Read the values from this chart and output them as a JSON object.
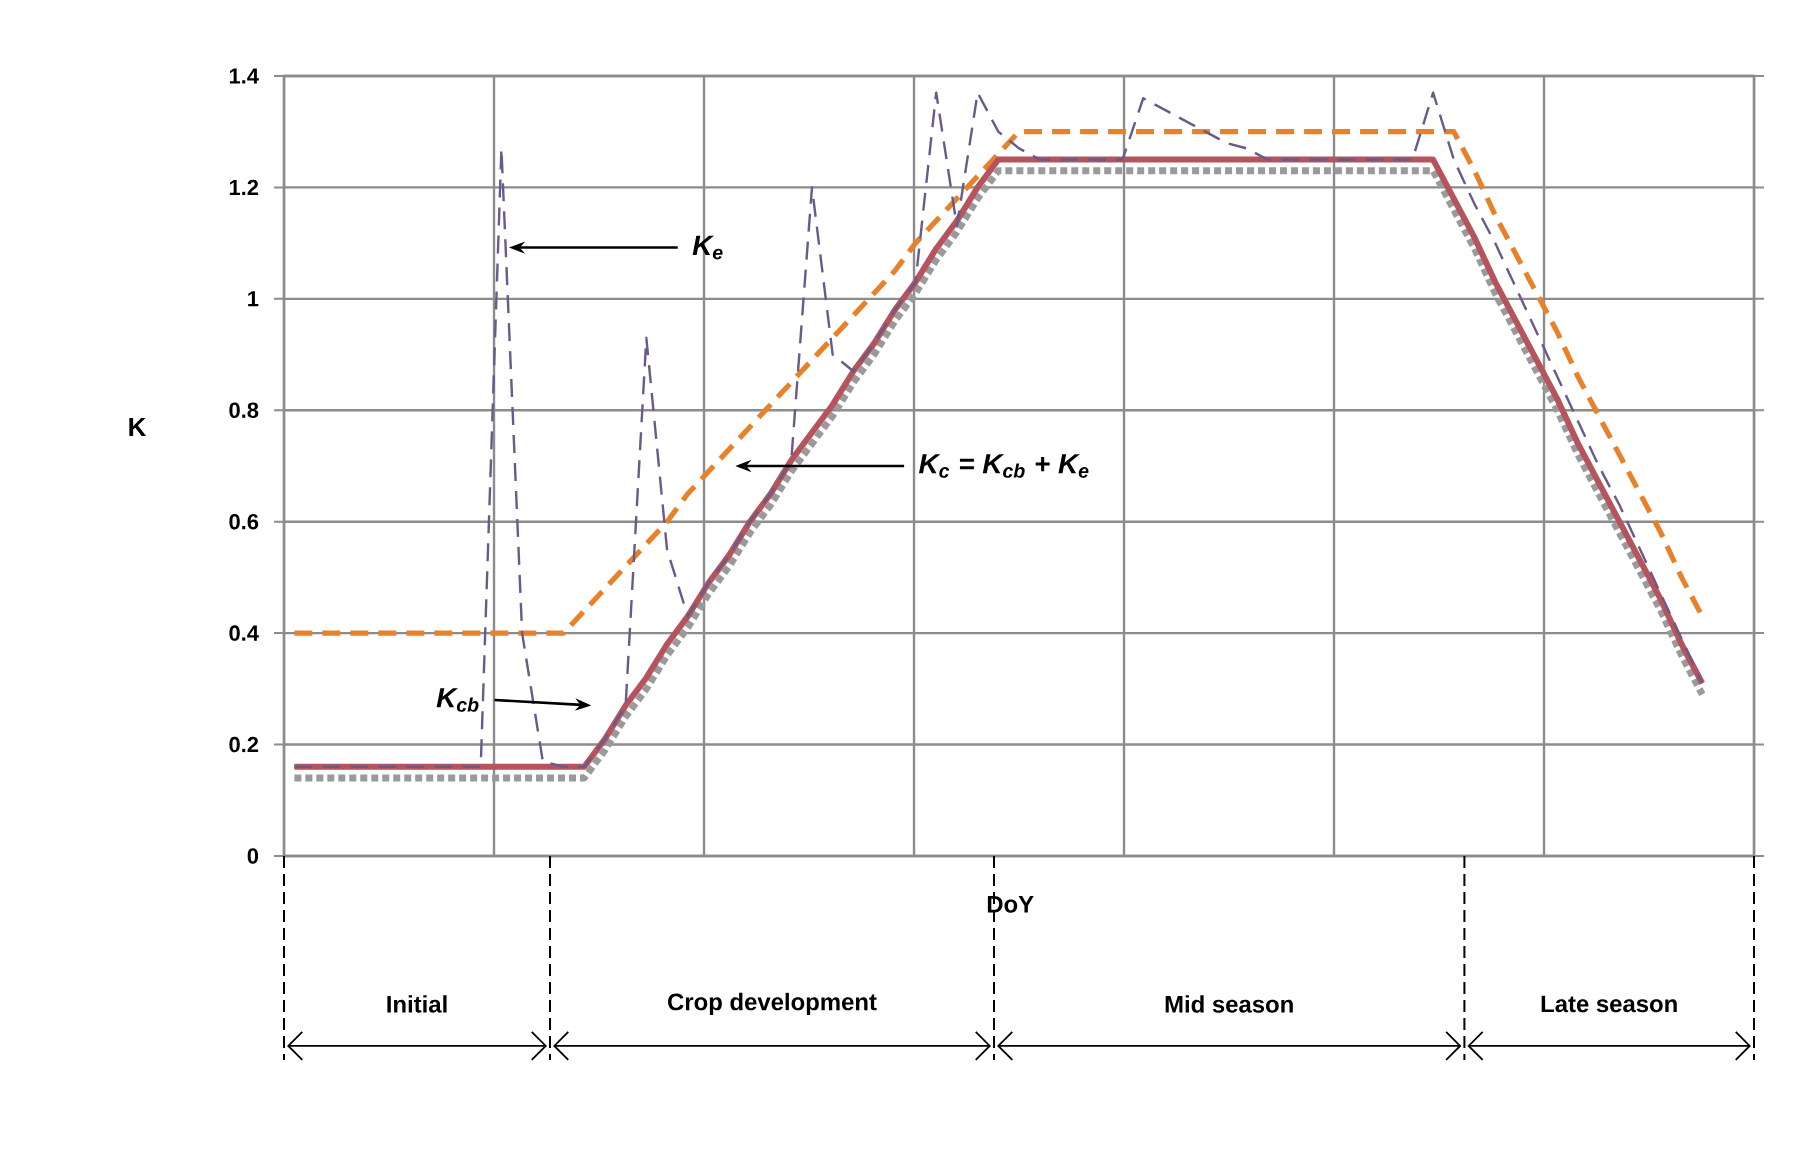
{
  "chart_data": {
    "type": "line",
    "xlabel": "DoY",
    "ylabel": "K",
    "categories": [
      null,
      null,
      null,
      null,
      null,
      null,
      null,
      null,
      null,
      null,
      null,
      null,
      null,
      null,
      null,
      null,
      null,
      null,
      null,
      null,
      null,
      null,
      null,
      null,
      null,
      null,
      null,
      null,
      null,
      null,
      null,
      null,
      null,
      null,
      null,
      null,
      null,
      null,
      null,
      null,
      null,
      null,
      null,
      null,
      null,
      null,
      null,
      null,
      null,
      null,
      null,
      null,
      null,
      null,
      null,
      null,
      null,
      null,
      null,
      null,
      null,
      null,
      null,
      null,
      null,
      null,
      null,
      null,
      null,
      null,
      null
    ],
    "ylim": [
      0,
      1.4
    ],
    "yticks": [
      0,
      0.2,
      0.4,
      0.6,
      0.8,
      1,
      1.2,
      1.4
    ],
    "tick_labels": "y",
    "grid": true,
    "series": [
      {
        "color": "#9a9a9a",
        "line_style": "dotted",
        "values": [
          0.14,
          0.14,
          0.14,
          0.14,
          0.14,
          0.14,
          0.14,
          0.14,
          0.14,
          0.14,
          0.14,
          0.14,
          0.14,
          0.14,
          0.14,
          0.19,
          0.25,
          0.3,
          0.36,
          0.41,
          0.47,
          0.52,
          0.58,
          0.63,
          0.69,
          0.74,
          0.79,
          0.85,
          0.9,
          0.96,
          1.01,
          1.07,
          1.12,
          1.18,
          1.23,
          1.23,
          1.23,
          1.23,
          1.23,
          1.23,
          1.23,
          1.23,
          1.23,
          1.23,
          1.23,
          1.23,
          1.23,
          1.23,
          1.23,
          1.23,
          1.23,
          1.23,
          1.23,
          1.23,
          1.23,
          1.23,
          1.16,
          1.09,
          1.01,
          0.94,
          0.87,
          0.8,
          0.72,
          0.65,
          0.58,
          0.51,
          0.44,
          0.36,
          0.29,
          null,
          null
        ]
      },
      {
        "color": "#e8822a",
        "line_style": "dashed",
        "values": [
          0.4,
          0.4,
          0.4,
          0.4,
          0.4,
          0.4,
          0.4,
          0.4,
          0.4,
          0.4,
          0.4,
          0.4,
          0.4,
          0.4,
          0.44,
          0.48,
          0.52,
          0.56,
          0.6,
          0.65,
          0.69,
          0.73,
          0.77,
          0.81,
          0.85,
          0.89,
          0.93,
          0.97,
          1.01,
          1.05,
          1.1,
          1.14,
          1.18,
          1.22,
          1.26,
          1.3,
          1.3,
          1.3,
          1.3,
          1.3,
          1.3,
          1.3,
          1.3,
          1.3,
          1.3,
          1.3,
          1.3,
          1.3,
          1.3,
          1.3,
          1.3,
          1.3,
          1.3,
          1.3,
          1.3,
          1.3,
          1.3,
          1.23,
          1.15,
          1.08,
          1.01,
          0.94,
          0.86,
          0.79,
          0.72,
          0.65,
          0.58,
          0.5,
          0.43,
          null,
          null
        ]
      },
      {
        "color": "#b5545c",
        "line_style": "solid",
        "values": [
          0.16,
          0.16,
          0.16,
          0.16,
          0.16,
          0.16,
          0.16,
          0.16,
          0.16,
          0.16,
          0.16,
          0.16,
          0.16,
          0.16,
          0.16,
          0.21,
          0.27,
          0.32,
          0.38,
          0.43,
          0.49,
          0.54,
          0.6,
          0.65,
          0.71,
          0.76,
          0.81,
          0.87,
          0.92,
          0.98,
          1.03,
          1.09,
          1.14,
          1.2,
          1.25,
          1.25,
          1.25,
          1.25,
          1.25,
          1.25,
          1.25,
          1.25,
          1.25,
          1.25,
          1.25,
          1.25,
          1.25,
          1.25,
          1.25,
          1.25,
          1.25,
          1.25,
          1.25,
          1.25,
          1.25,
          1.25,
          1.18,
          1.11,
          1.03,
          0.96,
          0.89,
          0.82,
          0.74,
          0.67,
          0.6,
          0.53,
          0.46,
          0.38,
          0.31,
          null,
          null
        ]
      },
      {
        "color": "#6a5a8a",
        "line_style": "dashed",
        "values": [
          0.16,
          0.16,
          0.16,
          0.16,
          0.16,
          0.16,
          0.16,
          0.16,
          0.16,
          0.16,
          1.27,
          0.4,
          0.17,
          0.16,
          0.16,
          0.21,
          0.27,
          0.93,
          0.55,
          0.43,
          0.49,
          0.54,
          0.6,
          0.65,
          0.71,
          1.2,
          0.9,
          0.87,
          0.92,
          0.98,
          1.03,
          1.37,
          1.13,
          1.37,
          1.3,
          1.27,
          1.25,
          1.25,
          1.25,
          1.25,
          1.25,
          1.36,
          1.34,
          1.32,
          1.3,
          1.28,
          1.27,
          1.25,
          1.25,
          1.25,
          1.25,
          1.25,
          1.25,
          1.25,
          1.25,
          1.37,
          1.25,
          1.17,
          1.1,
          1.02,
          0.94,
          0.86,
          0.78,
          0.7,
          0.63,
          0.55,
          0.47,
          0.39,
          0.31,
          null,
          null
        ]
      }
    ],
    "annotations": [
      "K$_{e}$",
      "K$_{c}$ = K$_{cb}$ + K$_{e}$",
      "K$_{cb}$",
      "Initial",
      "Crop development",
      "Mid season",
      "Late season"
    ]
  }
}
